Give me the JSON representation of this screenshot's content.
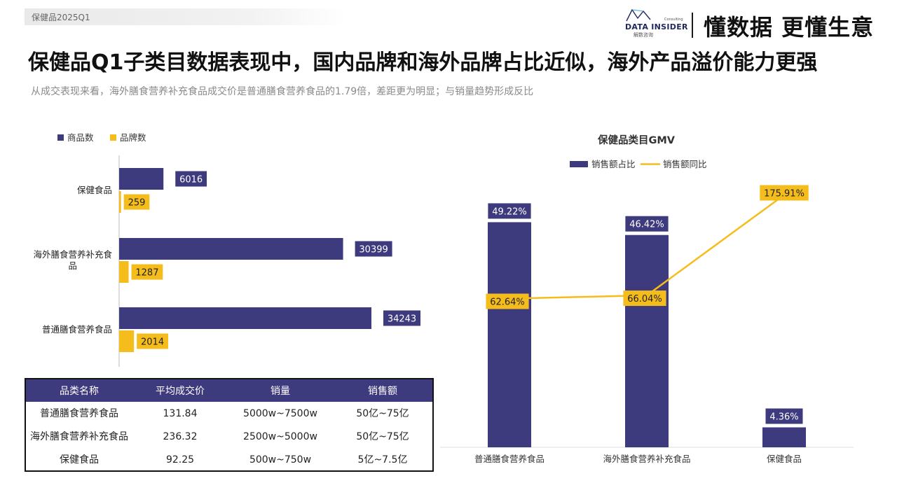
{
  "header": {
    "tag": "保健品2025Q1",
    "logo_en": "DATA INSIDER",
    "logo_cn": "解数咨询",
    "logo_consulting": "Consulting",
    "slogan": "懂数据 更懂生意",
    "title": "保健品Q1子类目数据表现中，国内品牌和海外品牌占比近似，海外产品溢价能力更强",
    "subtitle": "从成交表现来看，海外膳食营养补充食品成交价是普通膳食营养食品的1.79倍，差距更为明显；与销量趋势形成反比"
  },
  "chart_data": [
    {
      "type": "bar",
      "orientation": "horizontal",
      "title": "",
      "categories": [
        "保健食品",
        "海外膳食营养补充食品",
        "普通膳食营养食品"
      ],
      "series": [
        {
          "name": "商品数",
          "values": [
            6016,
            30399,
            34243
          ],
          "color": "#3d3a7e"
        },
        {
          "name": "品牌数",
          "values": [
            259,
            1287,
            2014
          ],
          "color": "#f5bd1b"
        }
      ],
      "xlim": [
        0,
        40000
      ],
      "legend": "top-left",
      "grid": false
    },
    {
      "type": "bar+line",
      "title": "保健品类目GMV",
      "categories": [
        "普通膳食营养食品",
        "海外膳食营养补充食品",
        "保健食品"
      ],
      "series": [
        {
          "name": "销售额占比",
          "type": "bar",
          "values": [
            49.22,
            46.42,
            4.36
          ],
          "labels": [
            "49.22%",
            "46.42%",
            "4.36%"
          ],
          "color": "#3d3a7e"
        },
        {
          "name": "销售额同比",
          "type": "line",
          "values": [
            62.64,
            66.04,
            175.91
          ],
          "labels": [
            "62.64%",
            "66.04%",
            "175.91%"
          ],
          "color": "#f5bd1b"
        }
      ],
      "bar_ylim": [
        0,
        60
      ],
      "line_ylim": [
        -100,
        200
      ],
      "legend": "top-center",
      "grid": false
    }
  ],
  "table": {
    "headers": [
      "品类名称",
      "平均成交价",
      "销量",
      "销售额"
    ],
    "rows": [
      [
        "普通膳食营养食品",
        "131.84",
        "5000w~7500w",
        "50亿~75亿"
      ],
      [
        "海外膳食营养补充食品",
        "236.32",
        "2500w~5000w",
        "50亿~75亿"
      ],
      [
        "保健食品",
        "92.25",
        "500w~750w",
        "5亿~7.5亿"
      ]
    ]
  }
}
